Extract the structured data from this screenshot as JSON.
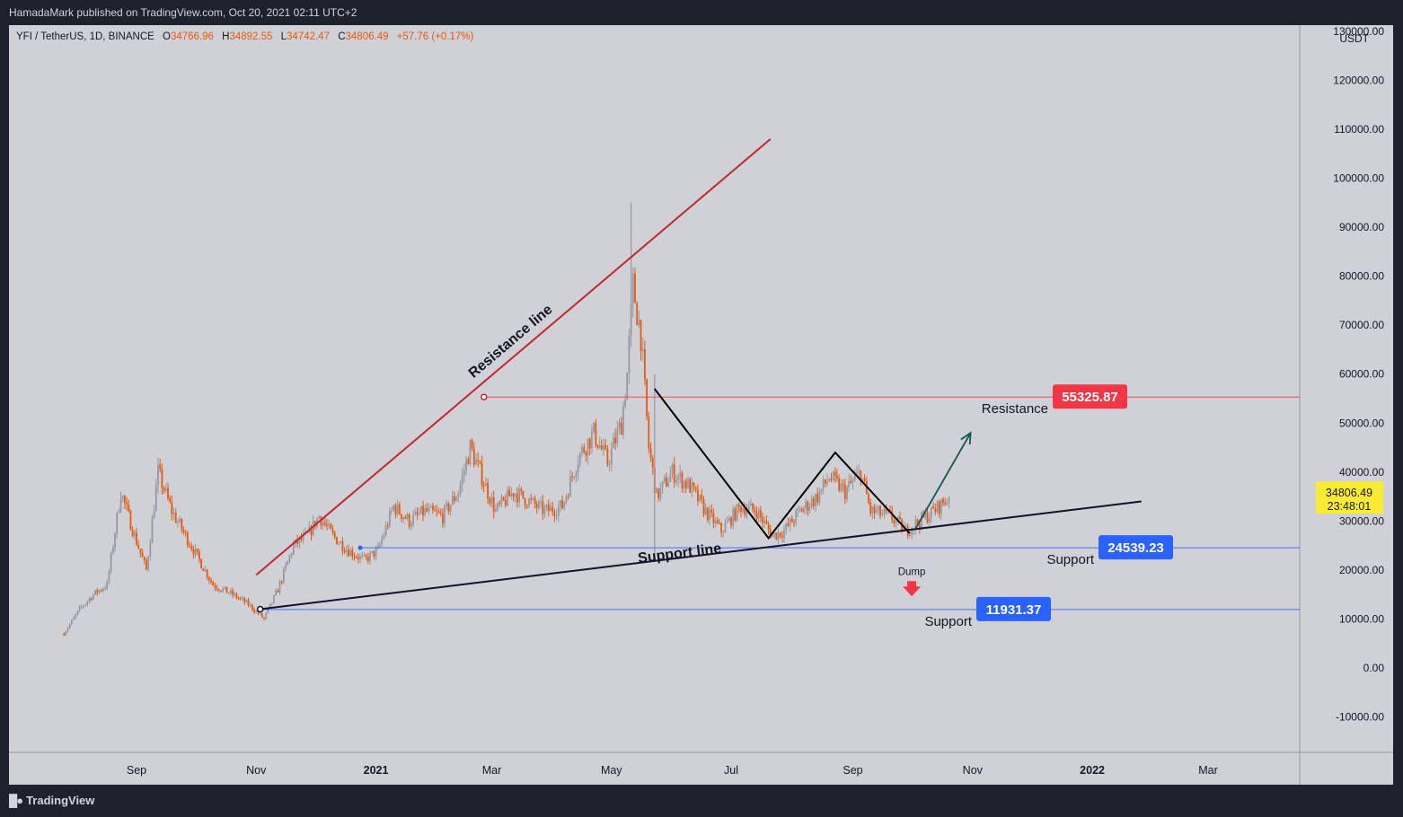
{
  "header": {
    "published_text": "HamadaMark published on TradingView.com, Oct 20, 2021 02:11 UTC+2"
  },
  "legend": {
    "symbol": "YFI / TetherUS, 1D, BINANCE",
    "open_label": "O",
    "open": "34766.96",
    "high_label": "H",
    "high": "34892.55",
    "low_label": "L",
    "low": "34742.47",
    "close_label": "C",
    "close": "34806.49",
    "change": "+57.76 (+0.17%)"
  },
  "footer": {
    "brand": "TradingView"
  },
  "chart_data": {
    "type": "candlestick",
    "currency": "USDT",
    "ylim": [
      -18000,
      130000
    ],
    "y_ticks": [
      "130000.00",
      "120000.00",
      "110000.00",
      "100000.00",
      "90000.00",
      "80000.00",
      "70000.00",
      "60000.00",
      "50000.00",
      "40000.00",
      "30000.00",
      "20000.00",
      "10000.00",
      "0.00",
      "-10000.00"
    ],
    "y_tick_values": [
      130000,
      120000,
      110000,
      100000,
      90000,
      80000,
      70000,
      60000,
      50000,
      40000,
      30000,
      20000,
      10000,
      0,
      -10000
    ],
    "x_ticks": [
      {
        "label": "Sep",
        "date": "2020-09-01",
        "bold": false
      },
      {
        "label": "Nov",
        "date": "2020-11-01",
        "bold": false
      },
      {
        "label": "2021",
        "date": "2021-01-01",
        "bold": true
      },
      {
        "label": "Mar",
        "date": "2021-03-01",
        "bold": false
      },
      {
        "label": "May",
        "date": "2021-05-01",
        "bold": false
      },
      {
        "label": "Jul",
        "date": "2021-07-01",
        "bold": false
      },
      {
        "label": "Sep",
        "date": "2021-09-01",
        "bold": false
      },
      {
        "label": "Nov",
        "date": "2021-11-01",
        "bold": false
      },
      {
        "label": "2022",
        "date": "2022-01-01",
        "bold": true
      },
      {
        "label": "Mar",
        "date": "2022-03-01",
        "bold": false
      }
    ],
    "price_path": [
      [
        "2020-07-26",
        7000
      ],
      [
        "2020-08-03",
        12000
      ],
      [
        "2020-08-10",
        15000
      ],
      [
        "2020-08-17",
        17000
      ],
      [
        "2020-08-24",
        36000
      ],
      [
        "2020-08-31",
        27000
      ],
      [
        "2020-09-06",
        20000
      ],
      [
        "2020-09-12",
        40000
      ],
      [
        "2020-09-19",
        32000
      ],
      [
        "2020-09-26",
        27000
      ],
      [
        "2020-10-03",
        22000
      ],
      [
        "2020-10-10",
        17000
      ],
      [
        "2020-10-20",
        15000
      ],
      [
        "2020-10-28",
        13000
      ],
      [
        "2020-11-05",
        10000
      ],
      [
        "2020-11-12",
        16000
      ],
      [
        "2020-11-20",
        25000
      ],
      [
        "2020-11-27",
        27000
      ],
      [
        "2020-12-03",
        31000
      ],
      [
        "2020-12-10",
        27000
      ],
      [
        "2020-12-18",
        24000
      ],
      [
        "2020-12-26",
        22000
      ],
      [
        "2021-01-02",
        24000
      ],
      [
        "2021-01-10",
        33000
      ],
      [
        "2021-01-18",
        30000
      ],
      [
        "2021-01-26",
        32000
      ],
      [
        "2021-02-04",
        31000
      ],
      [
        "2021-02-12",
        36000
      ],
      [
        "2021-02-18",
        45000
      ],
      [
        "2021-02-24",
        39000
      ],
      [
        "2021-03-03",
        32000
      ],
      [
        "2021-03-12",
        36000
      ],
      [
        "2021-03-20",
        34000
      ],
      [
        "2021-03-28",
        32000
      ],
      [
        "2021-04-06",
        33000
      ],
      [
        "2021-04-14",
        43000
      ],
      [
        "2021-04-22",
        48000
      ],
      [
        "2021-04-29",
        42000
      ],
      [
        "2021-05-06",
        50000
      ],
      [
        "2021-05-09",
        60000
      ],
      [
        "2021-05-12",
        78000
      ],
      [
        "2021-05-16",
        68000
      ],
      [
        "2021-05-20",
        45000
      ],
      [
        "2021-05-24",
        35000
      ],
      [
        "2021-06-01",
        40000
      ],
      [
        "2021-06-10",
        37000
      ],
      [
        "2021-06-18",
        32000
      ],
      [
        "2021-06-26",
        28000
      ],
      [
        "2021-07-06",
        33000
      ],
      [
        "2021-07-14",
        32000
      ],
      [
        "2021-07-22",
        27000
      ],
      [
        "2021-07-28",
        28000
      ],
      [
        "2021-08-05",
        32000
      ],
      [
        "2021-08-14",
        35000
      ],
      [
        "2021-08-20",
        39000
      ],
      [
        "2021-08-28",
        36000
      ],
      [
        "2021-09-05",
        40000
      ],
      [
        "2021-09-10",
        32000
      ],
      [
        "2021-09-20",
        31000
      ],
      [
        "2021-09-28",
        28000
      ],
      [
        "2021-10-05",
        30000
      ],
      [
        "2021-10-12",
        32000
      ],
      [
        "2021-10-20",
        34806
      ]
    ],
    "spike_candles": [
      {
        "date": "2021-05-11",
        "high": 95000,
        "low": 70000
      },
      {
        "date": "2021-05-23",
        "high": 60000,
        "low": 23000
      }
    ],
    "horizontal_lines": [
      {
        "name": "resistance-level",
        "value": 55325.87,
        "label": "55325.87",
        "caption": "Resistance",
        "color": "#f23645",
        "start": "2021-02-25"
      },
      {
        "name": "support-level-upper",
        "value": 24539.23,
        "label": "24539.23",
        "caption": "Support",
        "color": "#2962ff",
        "start": "2020-12-24"
      },
      {
        "name": "support-level-lower",
        "value": 11931.37,
        "label": "11931.37",
        "caption": "Support",
        "color": "#2962ff",
        "start": "2020-11-03"
      }
    ],
    "trend_lines": [
      {
        "name": "resistance-trendline",
        "from": [
          "2020-11-01",
          19000
        ],
        "to": [
          "2021-07-21",
          108000
        ],
        "color": "#c0282d",
        "label": "Resistance line",
        "label_at": [
          "2021-03-12",
          66000
        ],
        "anchor": [
          "2021-02-25",
          55325.87
        ]
      },
      {
        "name": "support-trendline",
        "from": [
          "2020-11-03",
          12000
        ],
        "to": [
          "2022-01-26",
          34000
        ],
        "color": "#131230",
        "label": "Support line",
        "label_at": [
          "2021-06-05",
          22500
        ]
      }
    ],
    "pattern_path": [
      [
        "2021-05-23",
        57000
      ],
      [
        "2021-07-20",
        26500
      ],
      [
        "2021-08-23",
        44000
      ],
      [
        "2021-09-30",
        27500
      ]
    ],
    "projection_arrow": {
      "from": [
        "2021-10-03",
        28500
      ],
      "to": [
        "2021-10-31",
        48000
      ],
      "color": "#0f5a4d"
    },
    "dump_marker": {
      "label": "Dump",
      "date": "2021-10-01",
      "value": 17000,
      "color": "#f23645"
    },
    "last_price": {
      "value": "34806.49",
      "countdown": "23:48:01"
    }
  }
}
